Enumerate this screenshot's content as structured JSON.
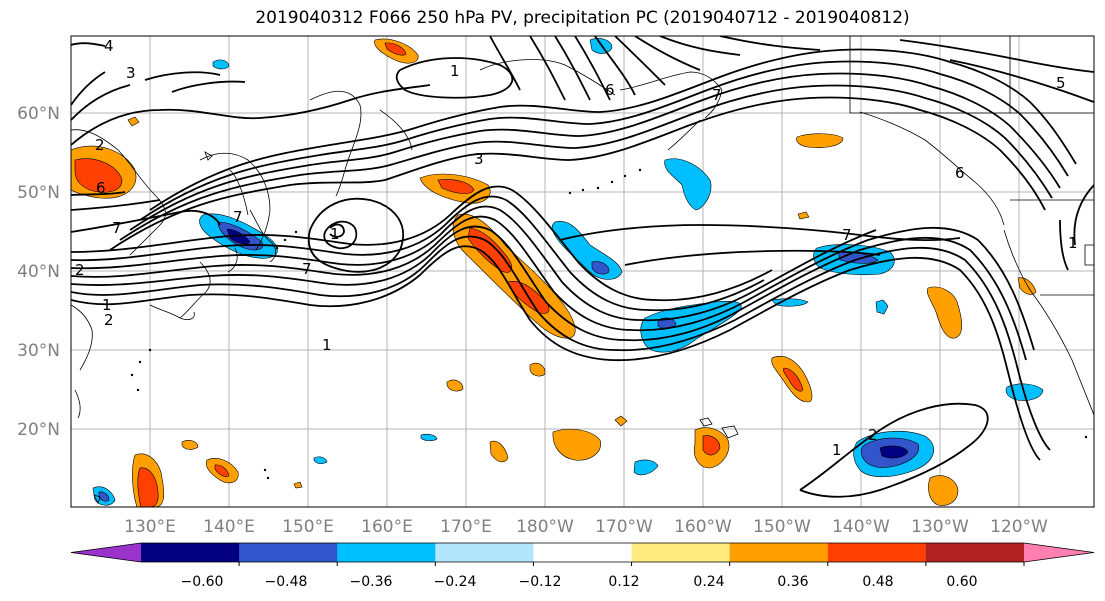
{
  "title": "2019040312 F066 250 hPa PV, precipitation PC (2019040712 - 2019040812)",
  "map": {
    "lon_labels": [
      "130°E",
      "140°E",
      "150°E",
      "160°E",
      "170°E",
      "180°W",
      "170°W",
      "160°W",
      "150°W",
      "140°W",
      "130°W",
      "120°W"
    ],
    "lat_labels": [
      "60°N",
      "50°N",
      "40°N",
      "30°N",
      "20°N"
    ],
    "contour_labels": [
      "4",
      "3",
      "1",
      "2",
      "6",
      "7",
      "7",
      "1",
      "2",
      "1",
      "2",
      "1",
      "7",
      "3",
      "6",
      "7",
      "7",
      "6",
      "5",
      "1",
      "2",
      "1"
    ]
  },
  "colorbar": {
    "colors": [
      "#9933cc",
      "#000080",
      "#3355cc",
      "#00bfff",
      "#b3e5fc",
      "#ffffff",
      "#ffeb80",
      "#ffa000",
      "#ff4000",
      "#b22222",
      "#ff80b0"
    ],
    "tick_labels": [
      "−0.60",
      "−0.48",
      "−0.36",
      "−0.24",
      "−0.12",
      "0.12",
      "0.24",
      "0.36",
      "0.48",
      "0.60"
    ]
  }
}
